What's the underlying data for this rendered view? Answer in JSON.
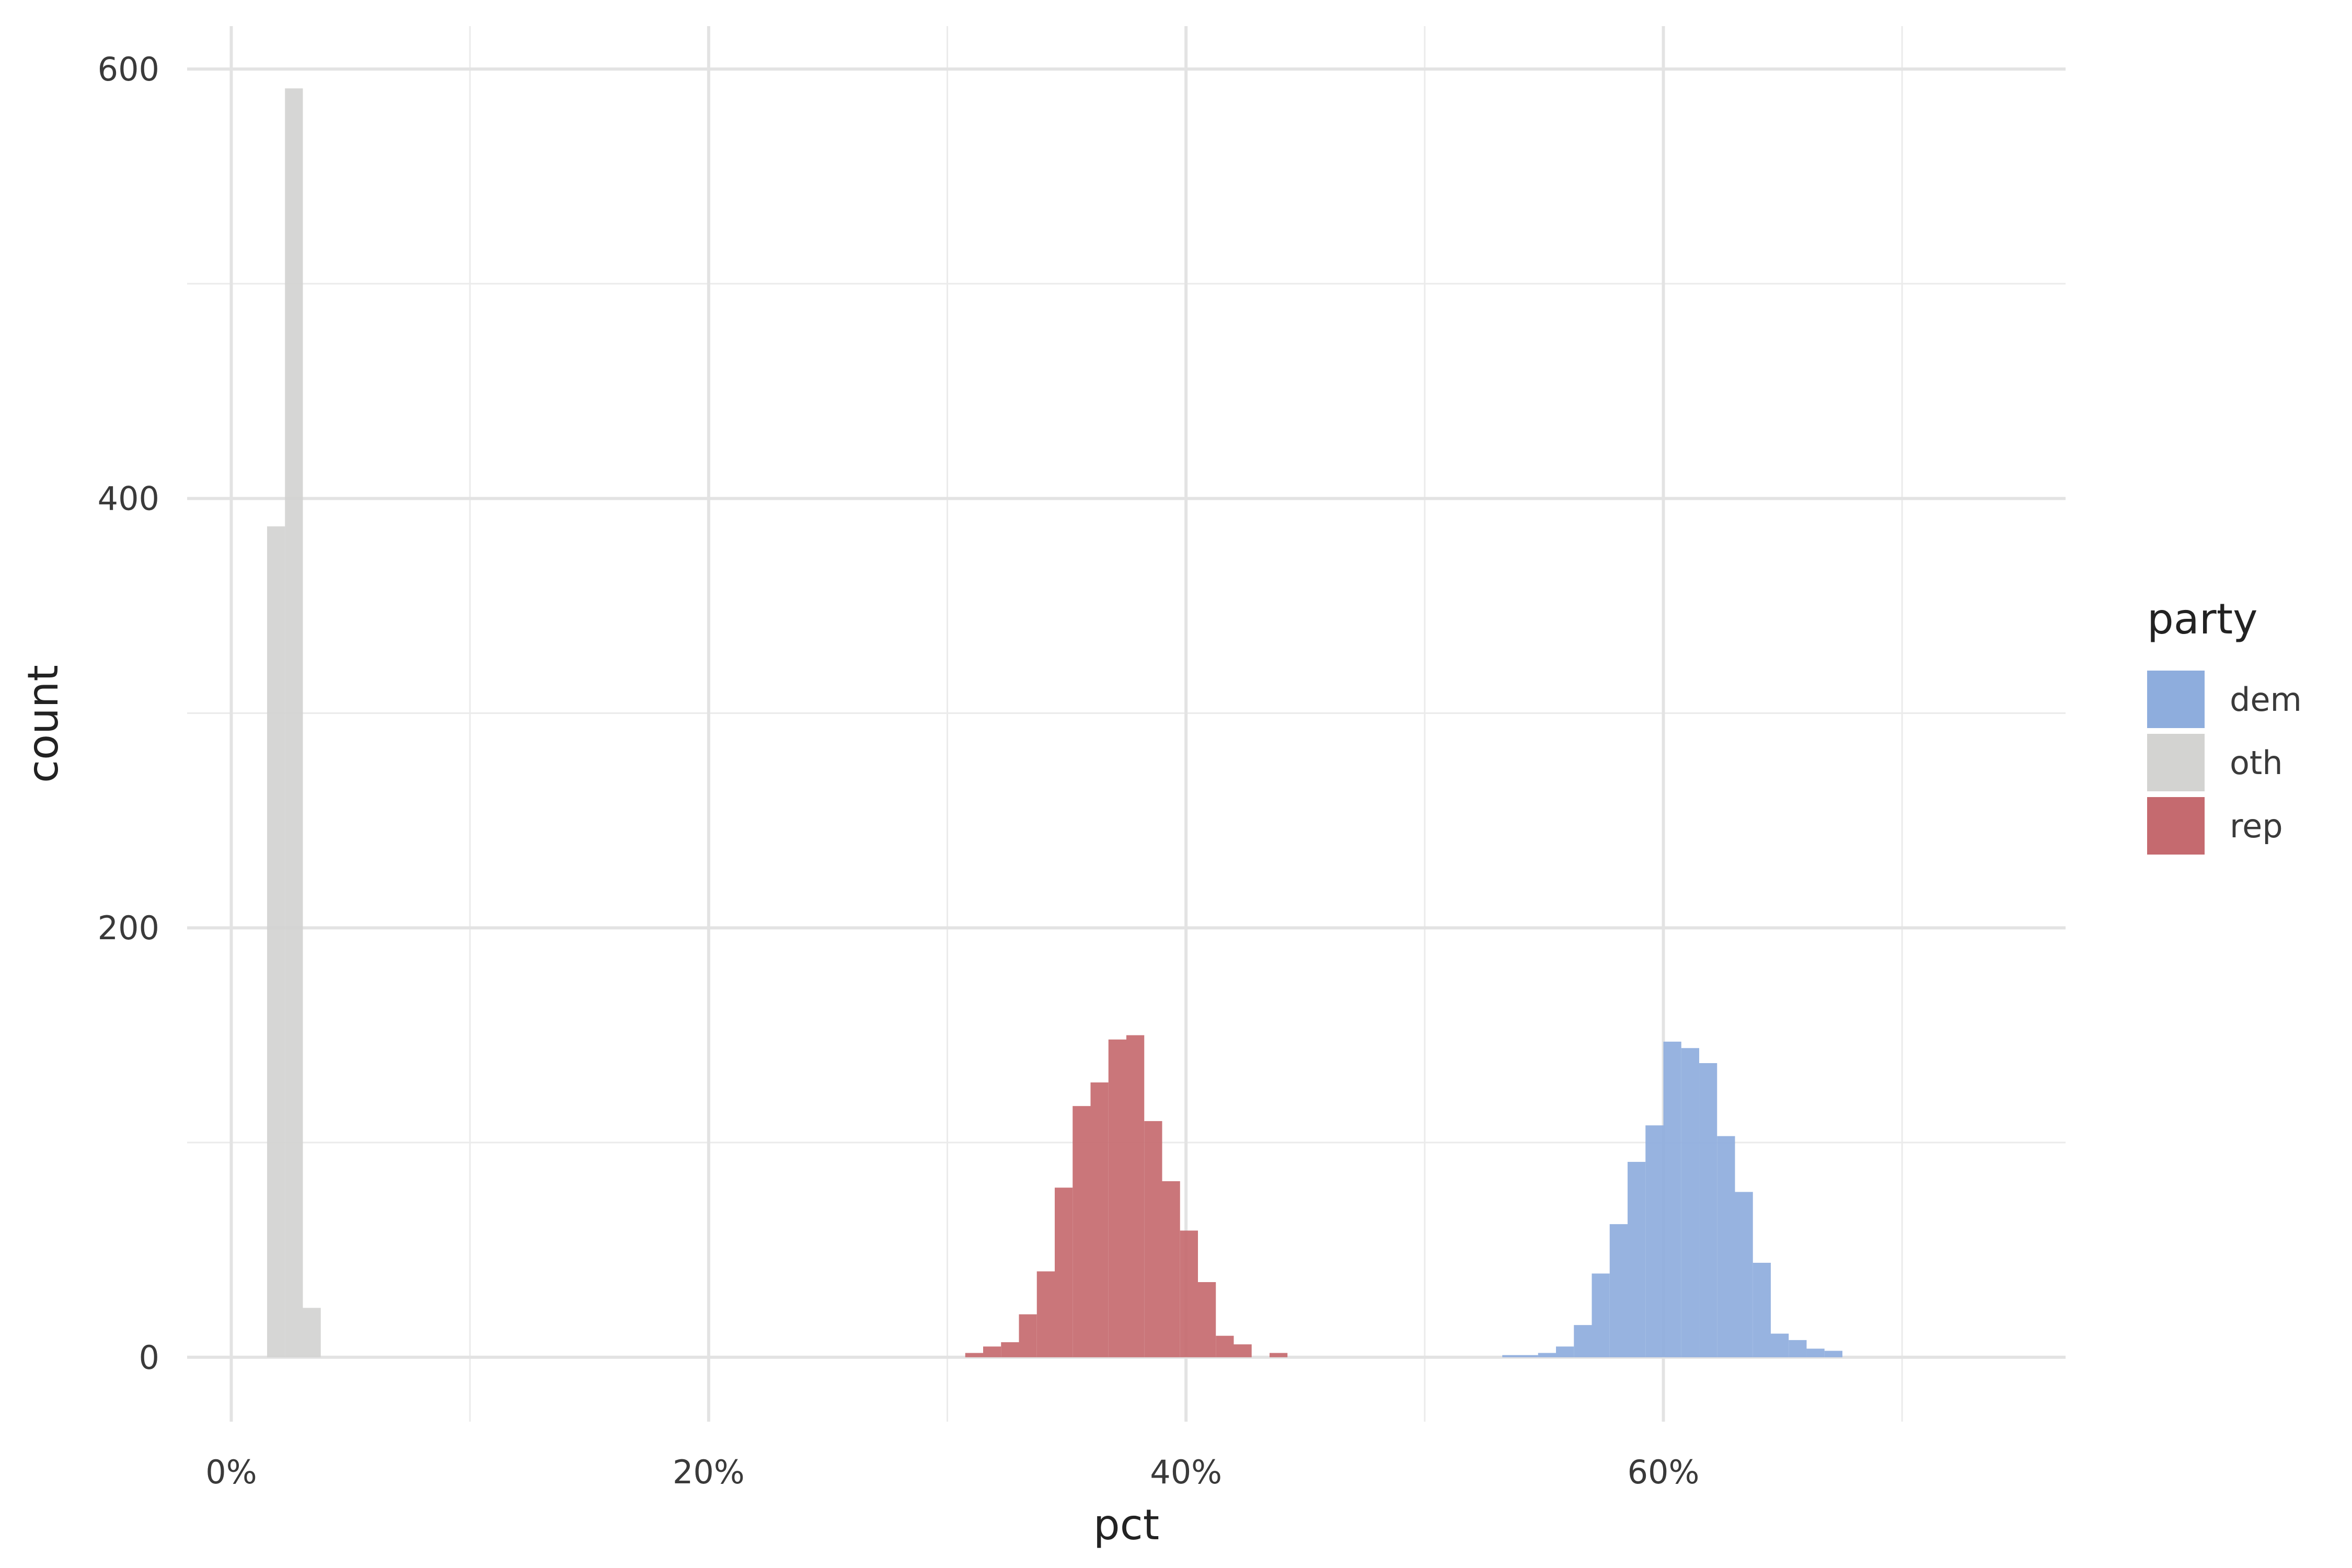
{
  "chart_data": {
    "type": "histogram",
    "xlabel": "pct",
    "ylabel": "count",
    "xlim": [
      -0.0185,
      0.7685
    ],
    "ylim": [
      -30,
      620
    ],
    "x_major_ticks": [
      0,
      0.2,
      0.4,
      0.6
    ],
    "x_tick_labels": [
      "0%",
      "20%",
      "40%",
      "60%"
    ],
    "x_minor_ticks": [
      0.1,
      0.3,
      0.5,
      0.7
    ],
    "y_major_ticks": [
      0,
      200,
      400,
      600
    ],
    "y_tick_labels": [
      "0",
      "200",
      "400",
      "600"
    ],
    "y_minor_ticks": [
      100,
      300,
      500
    ],
    "bin_width": 0.0075,
    "grid": true,
    "legend": {
      "title": "party",
      "position": "right",
      "entries": [
        {
          "label": "dem",
          "color": "#8EADDD"
        },
        {
          "label": "oth",
          "color": "#D3D3D1"
        },
        {
          "label": "rep",
          "color": "#C56A6F"
        }
      ]
    },
    "series": [
      {
        "name": "oth",
        "color": "#D3D3D1",
        "bins": [
          {
            "x0": 0.015,
            "x1": 0.0225,
            "count": 387
          },
          {
            "x0": 0.0225,
            "x1": 0.03,
            "count": 591
          },
          {
            "x0": 0.03,
            "x1": 0.0375,
            "count": 23
          }
        ]
      },
      {
        "name": "rep",
        "color": "#C56A6F",
        "bins": [
          {
            "x0": 0.3075,
            "x1": 0.315,
            "count": 2
          },
          {
            "x0": 0.315,
            "x1": 0.3225,
            "count": 5
          },
          {
            "x0": 0.3225,
            "x1": 0.33,
            "count": 7
          },
          {
            "x0": 0.33,
            "x1": 0.3375,
            "count": 20
          },
          {
            "x0": 0.3375,
            "x1": 0.345,
            "count": 40
          },
          {
            "x0": 0.345,
            "x1": 0.3525,
            "count": 79
          },
          {
            "x0": 0.3525,
            "x1": 0.36,
            "count": 117
          },
          {
            "x0": 0.36,
            "x1": 0.3675,
            "count": 128
          },
          {
            "x0": 0.3675,
            "x1": 0.375,
            "count": 148
          },
          {
            "x0": 0.375,
            "x1": 0.3825,
            "count": 150
          },
          {
            "x0": 0.3825,
            "x1": 0.39,
            "count": 110
          },
          {
            "x0": 0.39,
            "x1": 0.3975,
            "count": 82
          },
          {
            "x0": 0.3975,
            "x1": 0.405,
            "count": 59
          },
          {
            "x0": 0.405,
            "x1": 0.4125,
            "count": 35
          },
          {
            "x0": 0.4125,
            "x1": 0.42,
            "count": 10
          },
          {
            "x0": 0.42,
            "x1": 0.4275,
            "count": 6
          },
          {
            "x0": 0.4275,
            "x1": 0.435,
            "count": 0
          },
          {
            "x0": 0.435,
            "x1": 0.4425,
            "count": 2
          }
        ]
      },
      {
        "name": "dem",
        "color": "#8EADDD",
        "bins": [
          {
            "x0": 0.5325,
            "x1": 0.54,
            "count": 1
          },
          {
            "x0": 0.54,
            "x1": 0.5475,
            "count": 1
          },
          {
            "x0": 0.5475,
            "x1": 0.555,
            "count": 2
          },
          {
            "x0": 0.555,
            "x1": 0.5625,
            "count": 5
          },
          {
            "x0": 0.5625,
            "x1": 0.57,
            "count": 15
          },
          {
            "x0": 0.57,
            "x1": 0.5775,
            "count": 39
          },
          {
            "x0": 0.5775,
            "x1": 0.585,
            "count": 62
          },
          {
            "x0": 0.585,
            "x1": 0.5925,
            "count": 91
          },
          {
            "x0": 0.5925,
            "x1": 0.6,
            "count": 108
          },
          {
            "x0": 0.6,
            "x1": 0.6075,
            "count": 147
          },
          {
            "x0": 0.6075,
            "x1": 0.615,
            "count": 144
          },
          {
            "x0": 0.615,
            "x1": 0.6225,
            "count": 137
          },
          {
            "x0": 0.6225,
            "x1": 0.63,
            "count": 103
          },
          {
            "x0": 0.63,
            "x1": 0.6375,
            "count": 77
          },
          {
            "x0": 0.6375,
            "x1": 0.645,
            "count": 44
          },
          {
            "x0": 0.645,
            "x1": 0.6525,
            "count": 11
          },
          {
            "x0": 0.6525,
            "x1": 0.66,
            "count": 8
          },
          {
            "x0": 0.66,
            "x1": 0.6675,
            "count": 4
          },
          {
            "x0": 0.6675,
            "x1": 0.675,
            "count": 3
          }
        ]
      }
    ]
  }
}
